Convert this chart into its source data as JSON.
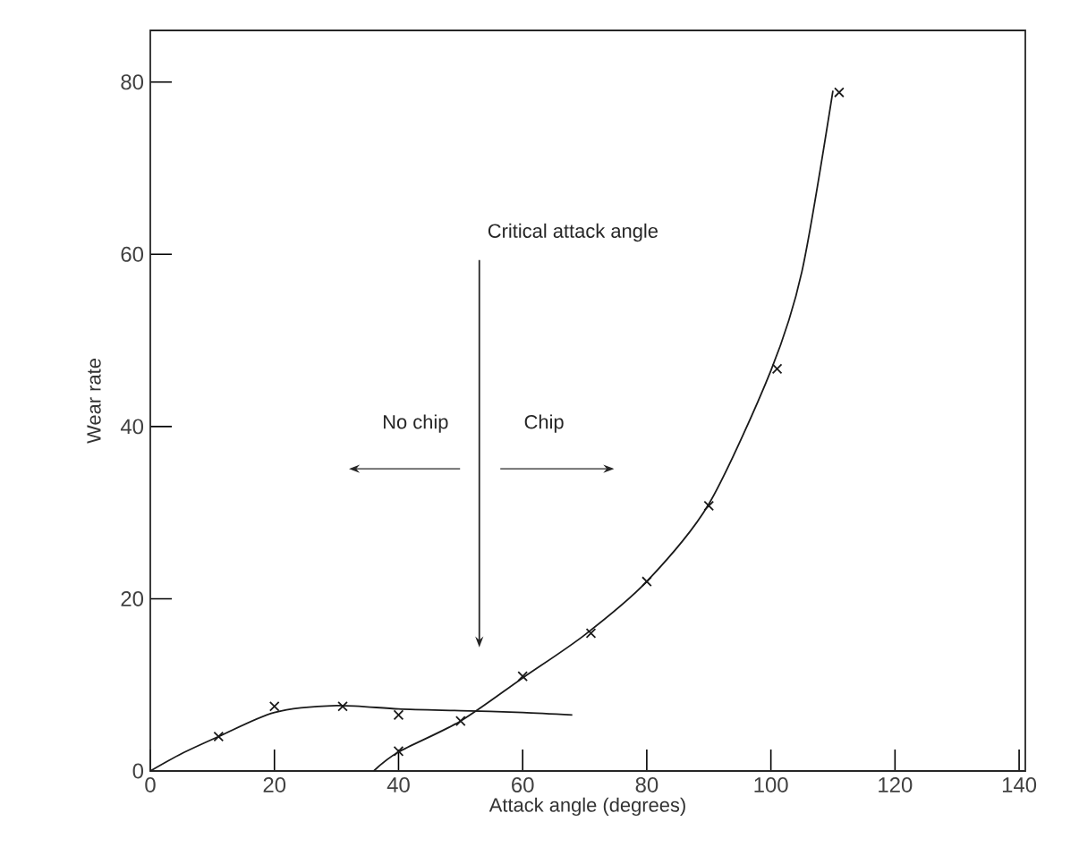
{
  "chart_data": {
    "type": "line",
    "xlabel": "Attack angle (degrees)",
    "ylabel": "Wear rate",
    "xlim": [
      0,
      141
    ],
    "ylim": [
      0,
      86
    ],
    "xticks": [
      0,
      20,
      40,
      60,
      80,
      100,
      120,
      140
    ],
    "yticks": [
      0,
      20,
      40,
      60,
      80
    ],
    "annotations": [
      "Critical attack angle",
      "No chip",
      "Chip"
    ],
    "series": [
      {
        "color": "#1a1a1a",
        "marker": "none",
        "line_style": "solid",
        "x": [
          0,
          5,
          11,
          20,
          30,
          40,
          50,
          60,
          68
        ],
        "values": [
          0,
          2,
          4,
          6.8,
          7.6,
          7.2,
          7,
          6.8,
          6.5
        ]
      },
      {
        "color": "#1a1a1a",
        "marker": "none",
        "line_style": "solid",
        "x": [
          36,
          40,
          50,
          60,
          70,
          80,
          90,
          100,
          105,
          110
        ],
        "values": [
          0,
          2.2,
          5.8,
          10.8,
          15.8,
          22,
          31,
          46.5,
          58,
          79
        ]
      },
      {
        "type": "scatter",
        "color": "#1a1a1a",
        "marker": "cross",
        "x": [
          11,
          20,
          31,
          40
        ],
        "values": [
          4,
          7.5,
          7.5,
          6.5
        ]
      },
      {
        "type": "scatter",
        "color": "#1a1a1a",
        "marker": "cross",
        "x": [
          40,
          50,
          60,
          71,
          80,
          90,
          101,
          111
        ],
        "values": [
          2.3,
          5.8,
          11,
          16,
          22,
          30.8,
          46.7,
          78.8
        ]
      }
    ]
  }
}
